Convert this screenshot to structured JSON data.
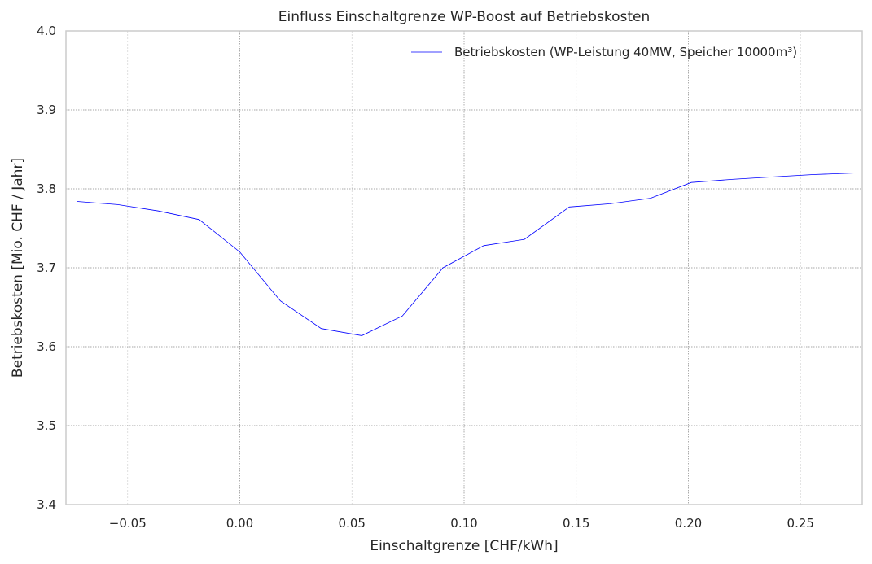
{
  "chart_data": {
    "type": "line",
    "title": "Einfluss Einschaltgrenze WP-Boost auf Betriebskosten",
    "xlabel": "Einschaltgrenze [CHF/kWh]",
    "ylabel": "Betriebskosten [Mio. CHF / Jahr]",
    "xlim": [
      -0.0775,
      0.2775
    ],
    "ylim": [
      3.4,
      4.0
    ],
    "xticks": [
      -0.05,
      0.0,
      0.05,
      0.1,
      0.15,
      0.2,
      0.25
    ],
    "xtick_labels": [
      "−0.05",
      "0.00",
      "0.05",
      "0.10",
      "0.15",
      "0.20",
      "0.25"
    ],
    "yticks": [
      3.4,
      3.5,
      3.6,
      3.7,
      3.8,
      3.9,
      4.0
    ],
    "ytick_labels": [
      "3.4",
      "3.5",
      "3.6",
      "3.7",
      "3.8",
      "3.9",
      "4.0"
    ],
    "grid": true,
    "legend_position": "top-right",
    "series": [
      {
        "name": "Betriebskosten (WP-Leistung 40MW, Speicher 10000m³)",
        "color": "#0000ff",
        "x": [
          -0.0725,
          -0.0544,
          -0.0363,
          -0.0181,
          0.0,
          0.0181,
          0.0363,
          0.0544,
          0.0725,
          0.0906,
          0.1088,
          0.1269,
          0.1469,
          0.165,
          0.1831,
          0.2013,
          0.2194,
          0.2375,
          0.2556,
          0.2738
        ],
        "y": [
          3.784,
          3.78,
          3.772,
          3.761,
          3.72,
          3.658,
          3.623,
          3.614,
          3.639,
          3.7,
          3.728,
          3.736,
          3.777,
          3.781,
          3.788,
          3.808,
          3.812,
          3.815,
          3.818,
          3.82
        ]
      }
    ]
  }
}
